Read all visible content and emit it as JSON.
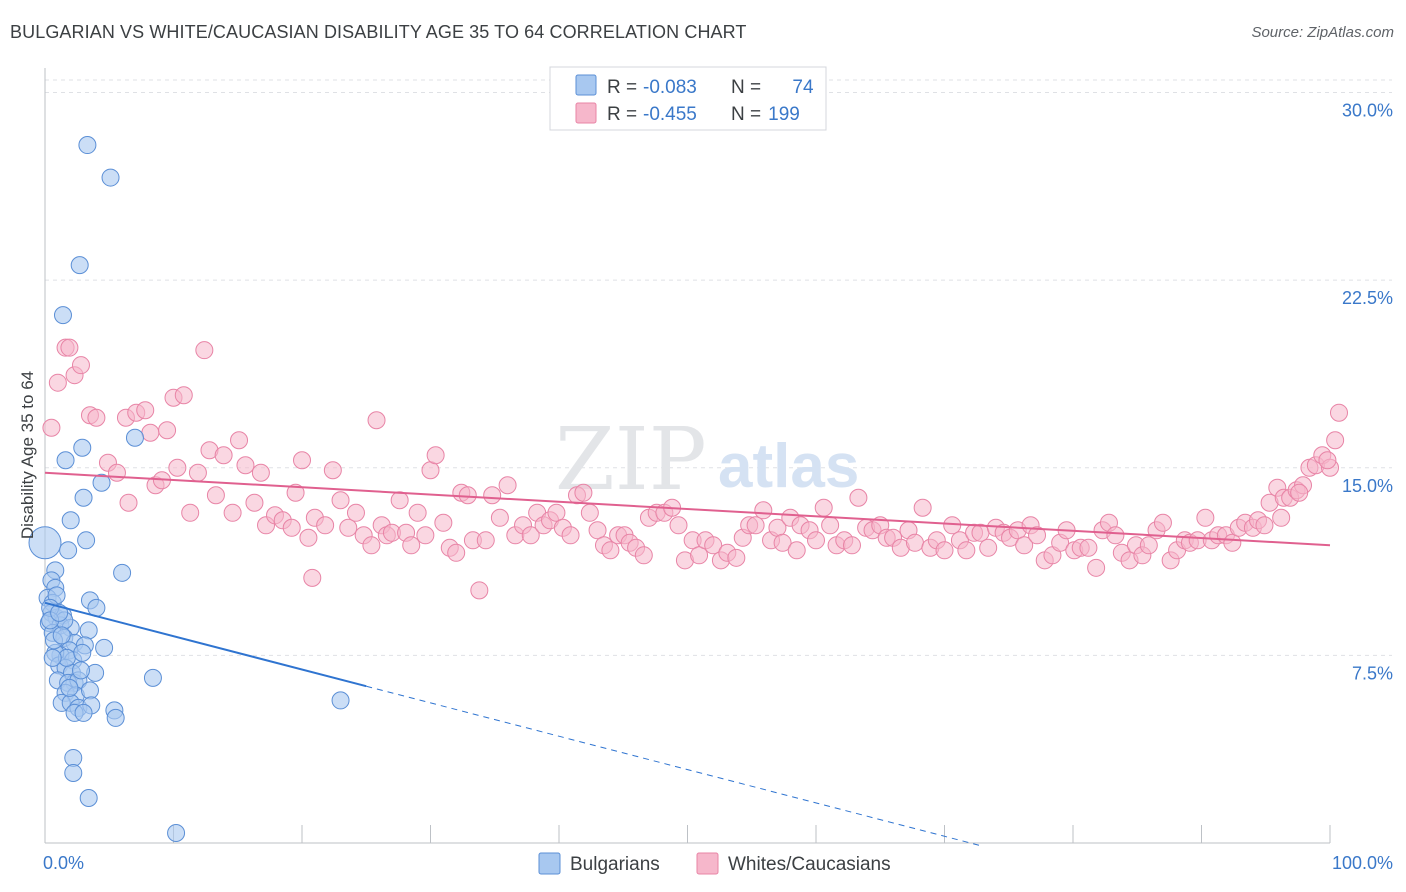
{
  "header": {
    "title": "BULGARIAN VS WHITE/CAUCASIAN DISABILITY AGE 35 TO 64 CORRELATION CHART",
    "source": "Source: ZipAtlas.com"
  },
  "watermark": {
    "zip": "ZIP",
    "atlas": "atlas"
  },
  "stats_box": {
    "rows": [
      {
        "series": "Bulgarians",
        "r_label": "R =",
        "r_value": "-0.083",
        "n_label": "N =",
        "n_value": "74"
      },
      {
        "series": "Whites/Caucasians",
        "r_label": "R =",
        "r_value": "-0.455",
        "n_label": "N =",
        "n_value": "199"
      }
    ]
  },
  "colors": {
    "blue_fill": "#a8c8f0",
    "blue_stroke": "#5b8fd6",
    "blue_line": "#2f74d0",
    "pink_fill": "#f6b7cb",
    "pink_stroke": "#e884a6",
    "pink_line": "#e0608f",
    "value_text": "#3a78c9",
    "grid": "#dfe1e5",
    "axis": "#bdc1c6"
  },
  "chart_data": {
    "type": "scatter",
    "title": "BULGARIAN VS WHITE/CAUCASIAN DISABILITY AGE 35 TO 64 CORRELATION CHART",
    "xlabel": "",
    "ylabel": "Disability Age 35 to 64",
    "xlim": [
      0,
      100
    ],
    "ylim": [
      0,
      30.5
    ],
    "x_tick_labels": [
      "0.0%",
      "100.0%"
    ],
    "y_ticks": [
      7.5,
      15.0,
      22.5,
      30.0
    ],
    "y_tick_labels": [
      "7.5%",
      "15.0%",
      "22.5%",
      "30.0%"
    ],
    "grid": true,
    "legend_position": "bottom-center",
    "series": [
      {
        "name": "Bulgarians",
        "color": "#a8c8f0",
        "trend": {
          "x_start": 0,
          "y_start": 9.6,
          "x_solid_end": 25,
          "x_dashed_end": 73,
          "slope": -0.1333
        },
        "points": [
          [
            0.0,
            12.0
          ],
          [
            3.3,
            27.9
          ],
          [
            5.1,
            26.6
          ],
          [
            2.7,
            23.1
          ],
          [
            1.4,
            21.1
          ],
          [
            1.6,
            15.3
          ],
          [
            2.9,
            15.8
          ],
          [
            7.0,
            16.2
          ],
          [
            4.4,
            14.4
          ],
          [
            3.0,
            13.8
          ],
          [
            2.0,
            12.9
          ],
          [
            3.2,
            12.1
          ],
          [
            1.8,
            11.7
          ],
          [
            6.0,
            10.8
          ],
          [
            0.8,
            10.9
          ],
          [
            0.5,
            10.5
          ],
          [
            0.8,
            10.2
          ],
          [
            0.2,
            9.8
          ],
          [
            0.6,
            9.6
          ],
          [
            3.5,
            9.7
          ],
          [
            4.0,
            9.4
          ],
          [
            0.5,
            9.2
          ],
          [
            0.9,
            9.0
          ],
          [
            1.4,
            9.1
          ],
          [
            0.3,
            8.8
          ],
          [
            1.2,
            8.7
          ],
          [
            2.0,
            8.6
          ],
          [
            3.4,
            8.5
          ],
          [
            0.6,
            8.4
          ],
          [
            1.5,
            8.2
          ],
          [
            2.3,
            8.0
          ],
          [
            3.1,
            7.9
          ],
          [
            4.6,
            7.8
          ],
          [
            1.9,
            7.7
          ],
          [
            1.2,
            7.5
          ],
          [
            2.2,
            7.3
          ],
          [
            0.8,
            7.6
          ],
          [
            1.1,
            7.1
          ],
          [
            1.6,
            7.0
          ],
          [
            2.1,
            6.8
          ],
          [
            3.9,
            6.8
          ],
          [
            1.0,
            6.5
          ],
          [
            2.3,
            6.4
          ],
          [
            1.8,
            6.4
          ],
          [
            2.6,
            6.5
          ],
          [
            1.6,
            6.0
          ],
          [
            2.4,
            5.9
          ],
          [
            3.5,
            6.1
          ],
          [
            8.4,
            6.6
          ],
          [
            1.3,
            5.6
          ],
          [
            2.0,
            5.6
          ],
          [
            2.6,
            5.4
          ],
          [
            3.6,
            5.5
          ],
          [
            5.4,
            5.3
          ],
          [
            2.3,
            5.2
          ],
          [
            3.0,
            5.2
          ],
          [
            5.5,
            5.0
          ],
          [
            23.0,
            5.7
          ],
          [
            2.2,
            3.4
          ],
          [
            2.2,
            2.8
          ],
          [
            3.4,
            1.8
          ],
          [
            10.2,
            0.4
          ],
          [
            0.9,
            9.9
          ],
          [
            0.4,
            9.4
          ],
          [
            1.5,
            8.9
          ],
          [
            0.7,
            8.1
          ],
          [
            1.7,
            7.4
          ],
          [
            2.8,
            6.9
          ],
          [
            0.4,
            8.9
          ],
          [
            1.1,
            9.2
          ],
          [
            1.9,
            6.2
          ],
          [
            2.9,
            7.6
          ],
          [
            0.6,
            7.4
          ],
          [
            1.3,
            8.3
          ]
        ]
      },
      {
        "name": "Whites/Caucasians",
        "color": "#f6b7cb",
        "trend": {
          "x_start": 0,
          "y_start": 14.8,
          "x_end": 100,
          "y_end": 11.9
        },
        "points": [
          [
            0.5,
            16.6
          ],
          [
            1.0,
            18.4
          ],
          [
            1.6,
            19.8
          ],
          [
            1.9,
            19.8
          ],
          [
            2.3,
            18.7
          ],
          [
            2.8,
            19.1
          ],
          [
            3.5,
            17.1
          ],
          [
            4.0,
            17.0
          ],
          [
            4.9,
            15.2
          ],
          [
            5.6,
            14.8
          ],
          [
            6.3,
            17.0
          ],
          [
            6.5,
            13.6
          ],
          [
            7.1,
            17.2
          ],
          [
            7.8,
            17.3
          ],
          [
            8.2,
            16.4
          ],
          [
            8.6,
            14.3
          ],
          [
            9.1,
            14.5
          ],
          [
            9.5,
            16.5
          ],
          [
            10.0,
            17.8
          ],
          [
            10.8,
            17.9
          ],
          [
            10.3,
            15.0
          ],
          [
            11.3,
            13.2
          ],
          [
            11.9,
            14.8
          ],
          [
            12.4,
            19.7
          ],
          [
            12.8,
            15.7
          ],
          [
            13.3,
            13.9
          ],
          [
            13.9,
            15.5
          ],
          [
            14.6,
            13.2
          ],
          [
            15.1,
            16.1
          ],
          [
            15.6,
            15.1
          ],
          [
            16.3,
            13.6
          ],
          [
            16.8,
            14.8
          ],
          [
            17.2,
            12.7
          ],
          [
            17.9,
            13.1
          ],
          [
            18.5,
            12.9
          ],
          [
            19.2,
            12.6
          ],
          [
            19.5,
            14.0
          ],
          [
            20.0,
            15.3
          ],
          [
            20.5,
            12.2
          ],
          [
            21.0,
            13.0
          ],
          [
            20.8,
            10.6
          ],
          [
            21.8,
            12.7
          ],
          [
            22.4,
            14.9
          ],
          [
            23.0,
            13.7
          ],
          [
            23.6,
            12.6
          ],
          [
            24.2,
            13.2
          ],
          [
            24.8,
            12.3
          ],
          [
            25.4,
            11.9
          ],
          [
            25.8,
            16.9
          ],
          [
            26.2,
            12.7
          ],
          [
            26.6,
            12.3
          ],
          [
            27.0,
            12.4
          ],
          [
            27.6,
            13.7
          ],
          [
            28.1,
            12.4
          ],
          [
            28.5,
            11.9
          ],
          [
            29.0,
            13.2
          ],
          [
            29.6,
            12.3
          ],
          [
            30.0,
            14.9
          ],
          [
            30.4,
            15.5
          ],
          [
            31.0,
            12.8
          ],
          [
            31.5,
            11.8
          ],
          [
            32.0,
            11.6
          ],
          [
            32.4,
            14.0
          ],
          [
            32.9,
            13.9
          ],
          [
            33.3,
            12.1
          ],
          [
            33.8,
            10.1
          ],
          [
            34.3,
            12.1
          ],
          [
            34.8,
            13.9
          ],
          [
            35.4,
            13.0
          ],
          [
            36.0,
            14.3
          ],
          [
            36.6,
            12.3
          ],
          [
            37.2,
            12.7
          ],
          [
            37.8,
            12.3
          ],
          [
            38.3,
            13.2
          ],
          [
            38.8,
            12.7
          ],
          [
            39.3,
            12.9
          ],
          [
            39.8,
            13.2
          ],
          [
            40.3,
            12.6
          ],
          [
            40.9,
            12.3
          ],
          [
            41.4,
            13.9
          ],
          [
            41.9,
            14.0
          ],
          [
            42.4,
            13.2
          ],
          [
            43.0,
            12.5
          ],
          [
            43.5,
            11.9
          ],
          [
            44.0,
            11.7
          ],
          [
            44.6,
            12.3
          ],
          [
            45.1,
            12.3
          ],
          [
            45.5,
            12.0
          ],
          [
            46.0,
            11.8
          ],
          [
            46.6,
            11.5
          ],
          [
            47.0,
            13.0
          ],
          [
            47.6,
            13.2
          ],
          [
            48.2,
            13.2
          ],
          [
            48.8,
            13.4
          ],
          [
            49.3,
            12.7
          ],
          [
            49.8,
            11.3
          ],
          [
            50.4,
            12.1
          ],
          [
            50.9,
            11.5
          ],
          [
            51.4,
            12.1
          ],
          [
            52.0,
            11.9
          ],
          [
            52.6,
            11.3
          ],
          [
            53.1,
            11.6
          ],
          [
            53.8,
            11.4
          ],
          [
            54.3,
            12.2
          ],
          [
            54.8,
            12.7
          ],
          [
            55.3,
            12.7
          ],
          [
            55.9,
            13.3
          ],
          [
            56.5,
            12.1
          ],
          [
            57.0,
            12.6
          ],
          [
            57.4,
            12.0
          ],
          [
            58.0,
            13.0
          ],
          [
            58.5,
            11.7
          ],
          [
            58.8,
            12.7
          ],
          [
            59.5,
            12.5
          ],
          [
            60.0,
            12.1
          ],
          [
            60.6,
            13.4
          ],
          [
            61.1,
            12.7
          ],
          [
            61.6,
            11.9
          ],
          [
            62.2,
            12.1
          ],
          [
            62.8,
            11.9
          ],
          [
            63.3,
            13.8
          ],
          [
            63.9,
            12.6
          ],
          [
            64.4,
            12.5
          ],
          [
            65.0,
            12.7
          ],
          [
            65.5,
            12.2
          ],
          [
            66.0,
            12.2
          ],
          [
            66.6,
            11.8
          ],
          [
            67.2,
            12.5
          ],
          [
            67.7,
            12.0
          ],
          [
            68.3,
            13.4
          ],
          [
            68.9,
            11.8
          ],
          [
            69.4,
            12.1
          ],
          [
            70.0,
            11.7
          ],
          [
            70.6,
            12.7
          ],
          [
            71.2,
            12.1
          ],
          [
            71.7,
            11.7
          ],
          [
            72.3,
            12.4
          ],
          [
            72.8,
            12.4
          ],
          [
            73.4,
            11.8
          ],
          [
            74.0,
            12.6
          ],
          [
            74.6,
            12.4
          ],
          [
            75.1,
            12.2
          ],
          [
            75.7,
            12.5
          ],
          [
            76.2,
            11.9
          ],
          [
            76.7,
            12.7
          ],
          [
            77.2,
            12.3
          ],
          [
            77.8,
            11.3
          ],
          [
            78.4,
            11.5
          ],
          [
            79.0,
            12.0
          ],
          [
            79.5,
            12.5
          ],
          [
            80.1,
            11.7
          ],
          [
            80.6,
            11.8
          ],
          [
            81.2,
            11.8
          ],
          [
            81.8,
            11.0
          ],
          [
            82.3,
            12.5
          ],
          [
            82.8,
            12.8
          ],
          [
            83.3,
            12.3
          ],
          [
            83.8,
            11.6
          ],
          [
            84.4,
            11.3
          ],
          [
            84.9,
            11.9
          ],
          [
            85.4,
            11.5
          ],
          [
            85.9,
            11.9
          ],
          [
            86.5,
            12.5
          ],
          [
            87.0,
            12.8
          ],
          [
            87.6,
            11.3
          ],
          [
            88.1,
            11.7
          ],
          [
            88.7,
            12.1
          ],
          [
            89.1,
            12.0
          ],
          [
            89.7,
            12.1
          ],
          [
            90.3,
            13.0
          ],
          [
            90.8,
            12.1
          ],
          [
            91.3,
            12.3
          ],
          [
            91.9,
            12.3
          ],
          [
            92.4,
            12.0
          ],
          [
            92.9,
            12.6
          ],
          [
            93.4,
            12.8
          ],
          [
            94.0,
            12.6
          ],
          [
            94.4,
            12.9
          ],
          [
            94.9,
            12.7
          ],
          [
            95.3,
            13.6
          ],
          [
            95.9,
            14.2
          ],
          [
            96.4,
            13.8
          ],
          [
            96.9,
            13.8
          ],
          [
            97.4,
            14.1
          ],
          [
            97.9,
            14.3
          ],
          [
            98.4,
            15.0
          ],
          [
            98.9,
            15.1
          ],
          [
            99.4,
            15.5
          ],
          [
            100.0,
            15.0
          ],
          [
            100.4,
            16.1
          ],
          [
            100.7,
            17.2
          ],
          [
            99.8,
            15.3
          ],
          [
            97.6,
            14.0
          ],
          [
            96.2,
            13.0
          ]
        ]
      }
    ]
  },
  "legend": {
    "items": [
      {
        "label": "Bulgarians",
        "color": "#a8c8f0"
      },
      {
        "label": "Whites/Caucasians",
        "color": "#f6b7cb"
      }
    ]
  }
}
